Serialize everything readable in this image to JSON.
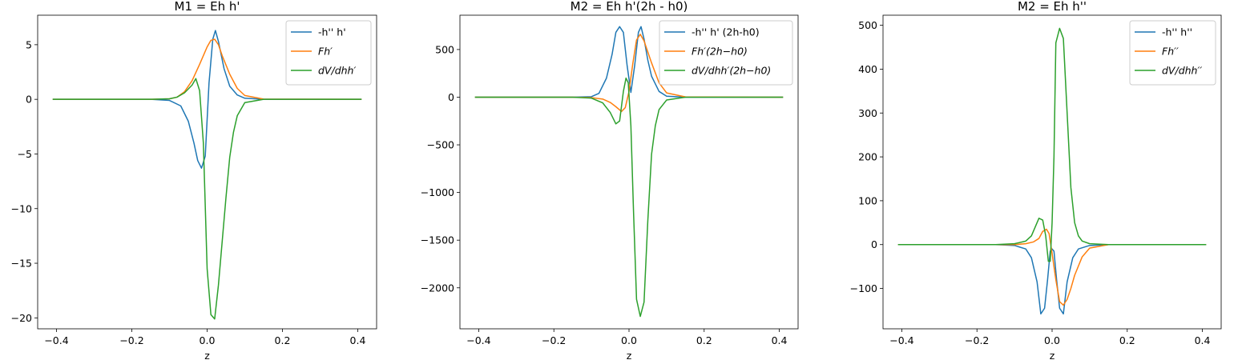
{
  "chart_data": [
    {
      "type": "line",
      "title": "M1 = Eh h'",
      "xlabel": "z",
      "ylabel": "",
      "xlim": [
        -0.45,
        0.45
      ],
      "ylim": [
        -21.0,
        7.7
      ],
      "xticks": [
        -0.4,
        -0.2,
        0.0,
        0.2,
        0.4
      ],
      "xtick_labels": [
        "−0.4",
        "−0.2",
        "0.0",
        "0.2",
        "0.4"
      ],
      "yticks": [
        -20,
        -15,
        -10,
        -5,
        0,
        5
      ],
      "ytick_labels": [
        "−20",
        "−15",
        "−10",
        "−5",
        "0",
        "5"
      ],
      "grid": false,
      "legend_position": "top-right",
      "series": [
        {
          "name": "-h'' h'",
          "color": "#1f77b4",
          "x": [
            -0.41,
            -0.15,
            -0.1,
            -0.07,
            -0.05,
            -0.035,
            -0.025,
            -0.015,
            -0.005,
            0.005,
            0.015,
            0.022,
            0.03,
            0.045,
            0.06,
            0.08,
            0.1,
            0.15,
            0.41
          ],
          "y": [
            0,
            0,
            -0.1,
            -0.6,
            -2.0,
            -4.0,
            -5.6,
            -6.3,
            -5.2,
            1.5,
            5.5,
            6.3,
            5.3,
            2.8,
            1.2,
            0.4,
            0.1,
            0,
            0
          ]
        },
        {
          "name": "Fh′",
          "color": "#ff7f0e",
          "x": [
            -0.41,
            -0.15,
            -0.1,
            -0.08,
            -0.06,
            -0.04,
            -0.02,
            0.0,
            0.01,
            0.02,
            0.03,
            0.04,
            0.06,
            0.08,
            0.1,
            0.15,
            0.41
          ],
          "y": [
            0,
            0,
            0.05,
            0.2,
            0.7,
            1.7,
            3.2,
            4.8,
            5.4,
            5.5,
            5.0,
            4.0,
            2.3,
            1.0,
            0.35,
            0.02,
            0
          ]
        },
        {
          "name": "dV/dhh′",
          "color": "#2ca02c",
          "x": [
            -0.41,
            -0.15,
            -0.1,
            -0.08,
            -0.06,
            -0.04,
            -0.03,
            -0.02,
            -0.01,
            0.0,
            0.01,
            0.02,
            0.03,
            0.04,
            0.05,
            0.06,
            0.07,
            0.08,
            0.1,
            0.15,
            0.41
          ],
          "y": [
            0,
            0,
            0.05,
            0.2,
            0.6,
            1.3,
            1.9,
            0.8,
            -4.0,
            -15.5,
            -19.7,
            -20.1,
            -17.0,
            -13.0,
            -9.0,
            -5.3,
            -3.0,
            -1.5,
            -0.3,
            0,
            0
          ]
        }
      ]
    },
    {
      "type": "line",
      "title": "M2 = Eh h'(2h - h0)",
      "xlabel": "z",
      "ylabel": "",
      "xlim": [
        -0.45,
        0.45
      ],
      "ylim": [
        -2430,
        860
      ],
      "xticks": [
        -0.4,
        -0.2,
        0.0,
        0.2,
        0.4
      ],
      "xtick_labels": [
        "−0.4",
        "−0.2",
        "0.0",
        "0.2",
        "0.4"
      ],
      "yticks": [
        -2000,
        -1500,
        -1000,
        -500,
        0,
        500
      ],
      "ytick_labels": [
        "−2000",
        "−1500",
        "−1000",
        "−500",
        "0",
        "500"
      ],
      "grid": false,
      "legend_position": "top-right",
      "series": [
        {
          "name": "-h'' h' (2h-h0)",
          "color": "#1f77b4",
          "x": [
            -0.41,
            -0.15,
            -0.1,
            -0.08,
            -0.06,
            -0.045,
            -0.035,
            -0.025,
            -0.015,
            -0.005,
            0.005,
            0.015,
            0.025,
            0.032,
            0.04,
            0.05,
            0.06,
            0.08,
            0.1,
            0.15,
            0.41
          ],
          "y": [
            0,
            0,
            5,
            40,
            200,
            450,
            680,
            740,
            680,
            330,
            50,
            330,
            680,
            740,
            610,
            390,
            220,
            60,
            10,
            0,
            0
          ]
        },
        {
          "name": "Fh′(2h−h0)",
          "color": "#ff7f0e",
          "x": [
            -0.41,
            -0.15,
            -0.1,
            -0.07,
            -0.05,
            -0.035,
            -0.02,
            -0.01,
            0.0,
            0.01,
            0.02,
            0.03,
            0.04,
            0.06,
            0.08,
            0.1,
            0.15,
            0.41
          ],
          "y": [
            0,
            0,
            -5,
            -20,
            -55,
            -100,
            -150,
            -110,
            60,
            350,
            600,
            660,
            590,
            360,
            150,
            45,
            3,
            0
          ]
        },
        {
          "name": "dV/dhh′(2h−h0)",
          "color": "#2ca02c",
          "x": [
            -0.41,
            -0.15,
            -0.1,
            -0.07,
            -0.05,
            -0.035,
            -0.025,
            -0.015,
            -0.008,
            -0.002,
            0.005,
            0.012,
            0.02,
            0.03,
            0.04,
            0.05,
            0.06,
            0.07,
            0.08,
            0.1,
            0.15,
            0.41
          ],
          "y": [
            0,
            0,
            -10,
            -60,
            -160,
            -280,
            -250,
            60,
            200,
            150,
            -300,
            -1200,
            -2120,
            -2300,
            -2150,
            -1300,
            -600,
            -300,
            -130,
            -30,
            0,
            0
          ]
        }
      ]
    },
    {
      "type": "line",
      "title": "M2 = Eh h''",
      "xlabel": "z",
      "ylabel": "",
      "xlim": [
        -0.45,
        0.45
      ],
      "ylim": [
        -192,
        523
      ],
      "xticks": [
        -0.4,
        -0.2,
        0.0,
        0.2,
        0.4
      ],
      "xtick_labels": [
        "−0.4",
        "−0.2",
        "0.0",
        "0.2",
        "0.4"
      ],
      "yticks": [
        -100,
        0,
        100,
        200,
        300,
        400,
        500
      ],
      "ytick_labels": [
        "−100",
        "0",
        "100",
        "200",
        "300",
        "400",
        "500"
      ],
      "grid": false,
      "legend_position": "top-right",
      "series": [
        {
          "name": "-h'' h''",
          "color": "#1f77b4",
          "x": [
            -0.41,
            -0.15,
            -0.1,
            -0.07,
            -0.055,
            -0.04,
            -0.03,
            -0.02,
            -0.012,
            -0.005,
            0.0,
            0.005,
            0.012,
            0.02,
            0.03,
            0.04,
            0.055,
            0.07,
            0.1,
            0.15,
            0.41
          ],
          "y": [
            0,
            0,
            -2,
            -10,
            -30,
            -85,
            -158,
            -145,
            -80,
            -15,
            -10,
            -15,
            -80,
            -145,
            -158,
            -85,
            -30,
            -10,
            -2,
            0,
            0
          ]
        },
        {
          "name": "Fh′′",
          "color": "#ff7f0e",
          "x": [
            -0.41,
            -0.15,
            -0.1,
            -0.07,
            -0.05,
            -0.035,
            -0.025,
            -0.015,
            -0.008,
            0.0,
            0.01,
            0.02,
            0.03,
            0.04,
            0.05,
            0.06,
            0.08,
            0.1,
            0.15,
            0.41
          ],
          "y": [
            0,
            0,
            0,
            2,
            6,
            14,
            30,
            35,
            25,
            -20,
            -80,
            -130,
            -138,
            -125,
            -100,
            -70,
            -28,
            -8,
            0,
            0
          ]
        },
        {
          "name": "dV/dhh′′",
          "color": "#2ca02c",
          "x": [
            -0.41,
            -0.15,
            -0.1,
            -0.07,
            -0.055,
            -0.045,
            -0.035,
            -0.025,
            -0.017,
            -0.01,
            -0.005,
            0.0,
            0.005,
            0.01,
            0.02,
            0.03,
            0.04,
            0.05,
            0.06,
            0.07,
            0.08,
            0.1,
            0.15,
            0.41
          ],
          "y": [
            0,
            0,
            2,
            8,
            20,
            40,
            60,
            56,
            20,
            -38,
            -38,
            50,
            200,
            460,
            493,
            470,
            300,
            130,
            50,
            20,
            8,
            2,
            0,
            0
          ]
        }
      ]
    }
  ]
}
